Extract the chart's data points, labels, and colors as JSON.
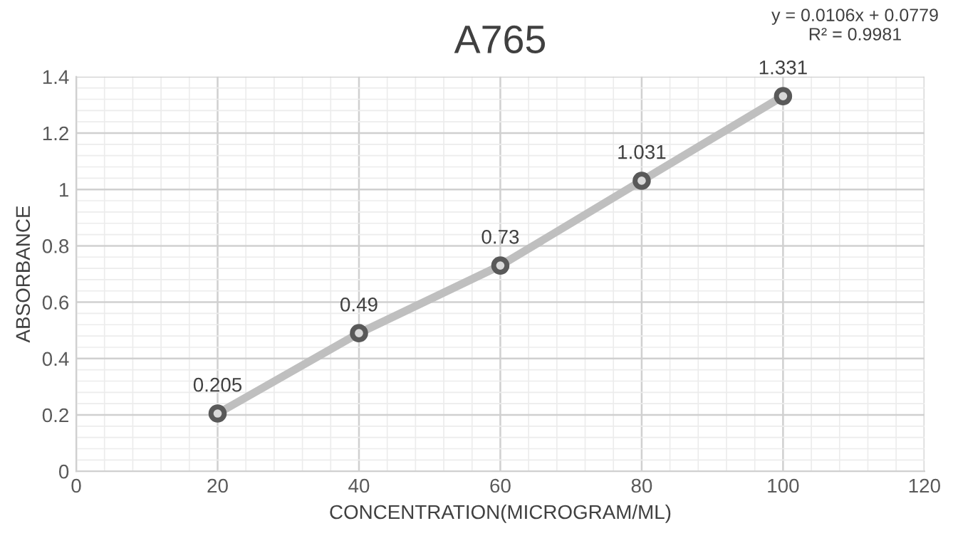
{
  "chart_data": {
    "type": "scatter",
    "title": "A765",
    "xlabel": "CONCENTRATION(MICROGRAM/ML)",
    "ylabel": "ABSORBANCE",
    "annotations": [
      "y = 0.0106x + 0.0779\nR² = 0.9981"
    ],
    "series": [
      {
        "type": "line",
        "color": "#bfbfbf",
        "x": [
          20,
          40,
          60,
          80,
          100
        ],
        "values": [
          0.205,
          0.49,
          0.73,
          1.031,
          1.331
        ]
      },
      {
        "color": "#595959",
        "x": [
          20,
          40,
          60,
          80,
          100
        ],
        "values": [
          0.205,
          0.49,
          0.73,
          1.031,
          1.331
        ],
        "marker": "circle",
        "value_labels": [
          "0.205",
          "0.49",
          "0.73",
          "1.031",
          "1.331"
        ]
      }
    ],
    "xlim": [
      0,
      120
    ],
    "xticks": [
      0,
      20,
      40,
      60,
      80,
      100,
      120
    ],
    "ylim": [
      0,
      1.4
    ],
    "yticks": [
      0,
      0.2,
      0.4,
      0.6,
      0.8,
      1,
      1.2,
      1.4
    ],
    "grid": true
  }
}
